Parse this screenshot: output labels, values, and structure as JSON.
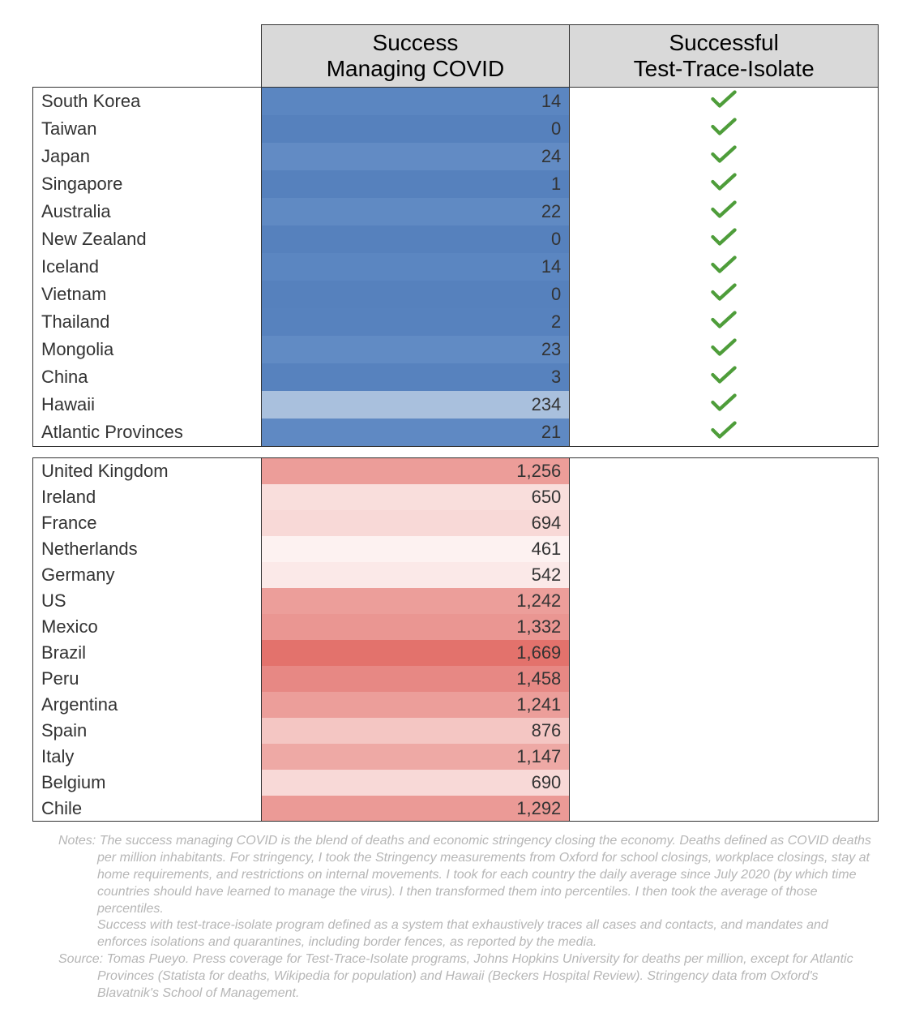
{
  "table": {
    "type": "table",
    "header": {
      "col1": "",
      "col2": "Success\nManaging COVID",
      "col3": "Successful\nTest-Trace-Isolate"
    },
    "columns": [
      "country",
      "success_value",
      "tti_check"
    ],
    "column_widths_pct": [
      27,
      36.5,
      36.5
    ],
    "header_bg": "#d9d9d9",
    "header_fontsize": 28,
    "body_fontsize": 22,
    "border_color": "#333333",
    "check_color": "#4e9d3a",
    "groups": [
      {
        "name": "successful",
        "palette": "blue",
        "rows": [
          {
            "country": "South Korea",
            "value": "14",
            "value_bg": "#5b86c1",
            "check": true
          },
          {
            "country": "Taiwan",
            "value": "0",
            "value_bg": "#5681bd",
            "check": true
          },
          {
            "country": "Japan",
            "value": "24",
            "value_bg": "#628bc4",
            "check": true
          },
          {
            "country": "Singapore",
            "value": "1",
            "value_bg": "#5681bd",
            "check": true
          },
          {
            "country": "Australia",
            "value": "22",
            "value_bg": "#608ac3",
            "check": true
          },
          {
            "country": "New Zealand",
            "value": "0",
            "value_bg": "#5681bd",
            "check": true
          },
          {
            "country": "Iceland",
            "value": "14",
            "value_bg": "#5b86c1",
            "check": true
          },
          {
            "country": "Vietnam",
            "value": "0",
            "value_bg": "#5681bd",
            "check": true
          },
          {
            "country": "Thailand",
            "value": "2",
            "value_bg": "#5782be",
            "check": true
          },
          {
            "country": "Mongolia",
            "value": "23",
            "value_bg": "#618bc4",
            "check": true
          },
          {
            "country": "China",
            "value": "3",
            "value_bg": "#5782be",
            "check": true
          },
          {
            "country": "Hawaii",
            "value": "234",
            "value_bg": "#a9c0dd",
            "check": true
          },
          {
            "country": "Atlantic Provinces",
            "value": "21",
            "value_bg": "#5f89c3",
            "check": true
          }
        ]
      },
      {
        "name": "unsuccessful",
        "palette": "red",
        "rows": [
          {
            "country": "United Kingdom",
            "value": "1,256",
            "value_bg": "#ec9d99",
            "check": false
          },
          {
            "country": "Ireland",
            "value": "650",
            "value_bg": "#f9dedc",
            "check": false
          },
          {
            "country": "France",
            "value": "694",
            "value_bg": "#f8d9d7",
            "check": false
          },
          {
            "country": "Netherlands",
            "value": "461",
            "value_bg": "#fdf2f1",
            "check": false
          },
          {
            "country": "Germany",
            "value": "542",
            "value_bg": "#fbe9e8",
            "check": false
          },
          {
            "country": "US",
            "value": "1,242",
            "value_bg": "#ec9e9a",
            "check": false
          },
          {
            "country": "Mexico",
            "value": "1,332",
            "value_bg": "#ea9692",
            "check": false
          },
          {
            "country": "Brazil",
            "value": "1,669",
            "value_bg": "#e3726c",
            "check": false
          },
          {
            "country": "Peru",
            "value": "1,458",
            "value_bg": "#e78884",
            "check": false
          },
          {
            "country": "Argentina",
            "value": "1,241",
            "value_bg": "#ec9e9a",
            "check": false
          },
          {
            "country": "Spain",
            "value": "876",
            "value_bg": "#f4c6c3",
            "check": false
          },
          {
            "country": "Italy",
            "value": "1,147",
            "value_bg": "#eea9a5",
            "check": false
          },
          {
            "country": "Belgium",
            "value": "690",
            "value_bg": "#f8d9d7",
            "check": false
          },
          {
            "country": "Chile",
            "value": "1,292",
            "value_bg": "#eb9a96",
            "check": false
          }
        ]
      }
    ]
  },
  "notes": {
    "color": "#b6b6b6",
    "fontsize": 16,
    "lines": [
      "Notes: The success managing COVID is the blend of deaths and economic stringency closing the economy. Deaths defined as COVID deaths per million inhabitants. For stringency, I took the Stringency measurements from Oxford for school closings, workplace closings, stay at home requirements, and restrictions on internal movements. I took for each country the daily average since July 2020 (by which time countries should have learned to manage the virus). I then transformed them into percentiles. I then took the average of those percentiles.",
      "Success with test-trace-isolate program defined as a system that exhaustively traces all cases and contacts, and mandates and enforces isolations and quarantines, including border fences, as reported by the media."
    ],
    "source": "Source: Tomas Pueyo. Press coverage for Test-Trace-Isolate programs, Johns Hopkins University for deaths per million, except for Atlantic Provinces (Statista for deaths, Wikipedia for population) and  Hawaii (Beckers Hospital Review). Stringency data from Oxford's Blavatnik's School of Management."
  }
}
